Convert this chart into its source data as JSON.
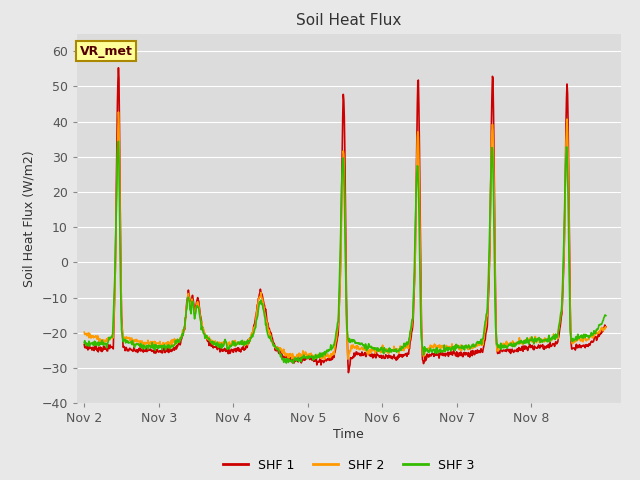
{
  "title": "Soil Heat Flux",
  "xlabel": "Time",
  "ylabel": "Soil Heat Flux (W/m2)",
  "ylim": [
    -40,
    65
  ],
  "yticks": [
    -40,
    -30,
    -20,
    -10,
    0,
    10,
    20,
    30,
    40,
    50,
    60
  ],
  "xlim": [
    -0.1,
    7.2
  ],
  "xtick_positions": [
    0,
    1,
    2,
    3,
    4,
    5,
    6
  ],
  "xtick_labels": [
    "Nov 2",
    "Nov 3",
    "Nov 4",
    "Nov 5",
    "Nov 6",
    "Nov 7",
    "Nov 8"
  ],
  "colors": {
    "SHF 1": "#cc0000",
    "SHF 2": "#ff9900",
    "SHF 3": "#33bb00"
  },
  "annotation_text": "VR_met",
  "annotation_box_facecolor": "#ffff99",
  "annotation_box_edgecolor": "#aa8800",
  "background_color": "#e8e8e8",
  "plot_bg_color": "#dcdcdc",
  "grid_color": "#ffffff",
  "linewidth": 1.2
}
